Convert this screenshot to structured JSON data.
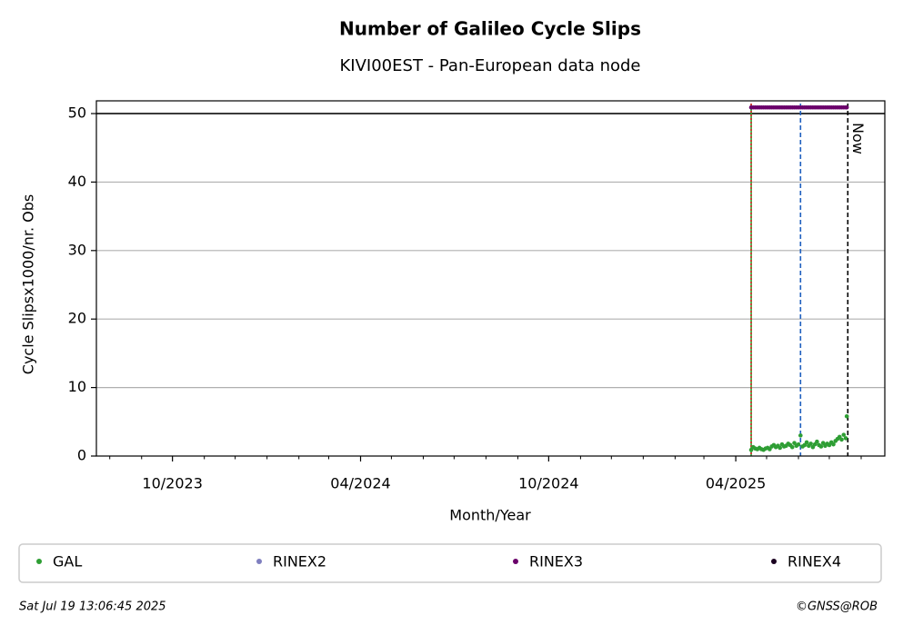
{
  "chart_data": {
    "type": "scatter",
    "title": "Number of Galileo Cycle Slips",
    "subtitle": "KIVI00EST - Pan-European data node",
    "xlabel": "Month/Year",
    "ylabel": "Cycle Slipsx1000/nr. Obs",
    "xlim": [
      "2023-07-19",
      "2025-08-24"
    ],
    "xticks": [
      {
        "value": "2023-10-01",
        "label": "10/2023"
      },
      {
        "value": "2024-04-01",
        "label": "04/2024"
      },
      {
        "value": "2024-10-01",
        "label": "10/2024"
      },
      {
        "value": "2025-04-01",
        "label": "04/2025"
      }
    ],
    "xminorticks": [
      "2023-08-01",
      "2023-09-01",
      "2023-11-01",
      "2023-12-01",
      "2024-01-01",
      "2024-02-01",
      "2024-03-01",
      "2024-05-01",
      "2024-06-01",
      "2024-07-01",
      "2024-08-01",
      "2024-09-01",
      "2024-11-01",
      "2024-12-01",
      "2025-01-01",
      "2025-02-01",
      "2025-03-01",
      "2025-05-01",
      "2025-06-01",
      "2025-07-01",
      "2025-08-01"
    ],
    "ylim": [
      0,
      51.86
    ],
    "yticks": [
      0,
      10,
      20,
      30,
      40,
      50
    ],
    "grid": true,
    "hlines": [
      {
        "y": 50,
        "color": "#000000"
      }
    ],
    "vlines": [
      {
        "x": "2025-04-16",
        "color": "#2ca02c",
        "style": "solid"
      },
      {
        "x": "2025-04-16",
        "color": "#d62728",
        "style": "dotted"
      },
      {
        "x": "2025-06-03",
        "color": "#1f5fbf",
        "style": "dashed"
      },
      {
        "x": "2025-07-19",
        "color": "#000000",
        "style": "dashed",
        "label": "Now"
      }
    ],
    "series": [
      {
        "name": "GAL",
        "color": "#2e9e34",
        "x": [
          "2025-04-16",
          "2025-04-18",
          "2025-04-20",
          "2025-04-22",
          "2025-04-24",
          "2025-04-26",
          "2025-04-28",
          "2025-04-30",
          "2025-05-02",
          "2025-05-04",
          "2025-05-06",
          "2025-05-08",
          "2025-05-10",
          "2025-05-12",
          "2025-05-14",
          "2025-05-16",
          "2025-05-18",
          "2025-05-20",
          "2025-05-22",
          "2025-05-24",
          "2025-05-26",
          "2025-05-28",
          "2025-05-30",
          "2025-06-01",
          "2025-06-03",
          "2025-06-05",
          "2025-06-07",
          "2025-06-09",
          "2025-06-11",
          "2025-06-13",
          "2025-06-15",
          "2025-06-17",
          "2025-06-19",
          "2025-06-21",
          "2025-06-23",
          "2025-06-25",
          "2025-06-27",
          "2025-06-29",
          "2025-07-01",
          "2025-07-03",
          "2025-07-05",
          "2025-07-07",
          "2025-07-09",
          "2025-07-11",
          "2025-07-13",
          "2025-07-15",
          "2025-07-17",
          "2025-07-18"
        ],
        "values": [
          0.9,
          1.3,
          1.1,
          1.0,
          1.2,
          1.0,
          0.9,
          1.1,
          1.2,
          1.0,
          1.4,
          1.6,
          1.3,
          1.5,
          1.2,
          1.7,
          1.4,
          1.5,
          1.8,
          1.6,
          1.3,
          1.9,
          1.5,
          1.7,
          3.0,
          1.4,
          1.6,
          2.0,
          1.5,
          1.8,
          1.3,
          1.7,
          2.1,
          1.6,
          1.4,
          1.9,
          1.5,
          1.8,
          1.6,
          2.0,
          1.7,
          2.2,
          2.5,
          2.8,
          2.4,
          3.1,
          2.6,
          5.8
        ]
      },
      {
        "name": "RINEX2",
        "color": "#7f7fbf",
        "x": [],
        "values": []
      },
      {
        "name": "RINEX3",
        "color": "#6a006a",
        "x": [
          "2025-04-16",
          "2025-04-18",
          "2025-04-20",
          "2025-04-22",
          "2025-04-24",
          "2025-04-26",
          "2025-04-28",
          "2025-04-30",
          "2025-05-02",
          "2025-05-04",
          "2025-05-06",
          "2025-05-08",
          "2025-05-10",
          "2025-05-12",
          "2025-05-14",
          "2025-05-16",
          "2025-05-18",
          "2025-05-20",
          "2025-05-22",
          "2025-05-24",
          "2025-05-26",
          "2025-05-28",
          "2025-05-30",
          "2025-06-01",
          "2025-06-03",
          "2025-06-05",
          "2025-06-07",
          "2025-06-09",
          "2025-06-11",
          "2025-06-13",
          "2025-06-15",
          "2025-06-17",
          "2025-06-19",
          "2025-06-21",
          "2025-06-23",
          "2025-06-25",
          "2025-06-27",
          "2025-06-29",
          "2025-07-01",
          "2025-07-03",
          "2025-07-05",
          "2025-07-07",
          "2025-07-09",
          "2025-07-11",
          "2025-07-13",
          "2025-07-15",
          "2025-07-17",
          "2025-07-18"
        ],
        "values": [
          50.9,
          50.9,
          50.9,
          50.9,
          50.9,
          50.9,
          50.9,
          50.9,
          50.9,
          50.9,
          50.9,
          50.9,
          50.9,
          50.9,
          50.9,
          50.9,
          50.9,
          50.9,
          50.9,
          50.9,
          50.9,
          50.9,
          50.9,
          50.9,
          50.9,
          50.9,
          50.9,
          50.9,
          50.9,
          50.9,
          50.9,
          50.9,
          50.9,
          50.9,
          50.9,
          50.9,
          50.9,
          50.9,
          50.9,
          50.9,
          50.9,
          50.9,
          50.9,
          50.9,
          50.9,
          50.9,
          50.9,
          50.9
        ]
      },
      {
        "name": "RINEX4",
        "color": "#1a0020",
        "x": [],
        "values": []
      }
    ],
    "legend": "bottom",
    "footer_left": "Sat Jul 19 13:06:45 2025",
    "footer_right": "©GNSS@ROB"
  }
}
